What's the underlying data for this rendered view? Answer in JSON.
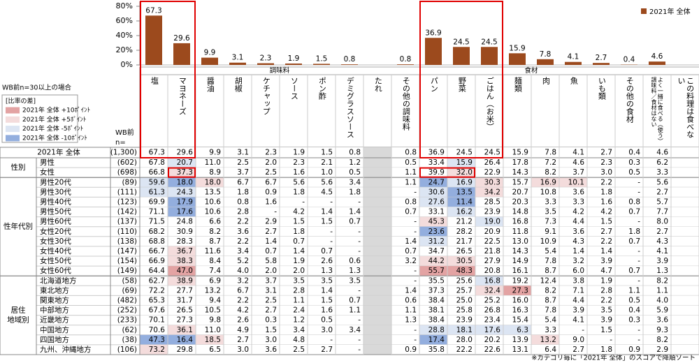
{
  "chart_data": {
    "type": "bar",
    "categories": [
      "塩",
      "マヨネーズ",
      "醤油",
      "胡椒",
      "ケチャップ",
      "ソース",
      "ポン酢",
      "デミグラスソース",
      "たれ",
      "その他の調味料",
      "パン",
      "野菜",
      "ごはん（お米）",
      "麺類",
      "肉",
      "魚",
      "いも類",
      "その他の食材",
      "よく一緒に食べる（使う）調味料／食材はない",
      "この料理は食べない"
    ],
    "series": [
      {
        "name": "2021年 全体",
        "color": "#9c4a1d",
        "values": [
          67.3,
          29.6,
          9.9,
          3.1,
          2.3,
          1.9,
          1.5,
          0.8,
          null,
          0.8,
          36.9,
          24.5,
          24.5,
          15.9,
          7.8,
          4.1,
          2.7,
          0.4,
          4.6,
          null
        ]
      }
    ],
    "ylim": [
      0,
      80
    ],
    "yticks": [
      {
        "value": 0,
        "label": "0%"
      },
      {
        "value": 20,
        "label": "20%"
      },
      {
        "value": 40,
        "label": "40%"
      },
      {
        "value": 60,
        "label": "60%"
      },
      {
        "value": 80,
        "label": "80%"
      }
    ],
    "legend": "top-right"
  },
  "column_groups": [
    "調味料",
    "食材"
  ],
  "condition": "WB前n=30以上の場合",
  "diff_legend": {
    "title": "[比率の差]",
    "items": [
      {
        "label": "2021年 全体 +10ﾎﾟｲﾝﾄ",
        "color": "#e3a3a3"
      },
      {
        "label": "2021年 全体 +5ﾎﾟｲﾝﾄ",
        "color": "#f4dcdc"
      },
      {
        "label": "2021年 全体 -5ﾎﾟｲﾝﾄ",
        "color": "#dce5f3"
      },
      {
        "label": "2021年 全体 -10ﾎﾟｲﾝﾄ",
        "color": "#93aede"
      }
    ]
  },
  "n_header": [
    "WB前",
    "n="
  ],
  "table": {
    "total": {
      "label": "2021年 全体",
      "n": "(1,300)",
      "cells": [
        "67.3",
        "29.6",
        "9.9",
        "3.1",
        "2.3",
        "1.9",
        "1.5",
        "0.8",
        null,
        "0.8",
        "36.9",
        "24.5",
        "24.5",
        "15.9",
        "7.8",
        "4.1",
        "2.7",
        "0.4",
        "4.6",
        null
      ]
    },
    "groups": [
      {
        "label": [
          "性別"
        ],
        "rows": [
          {
            "label": "男性",
            "n": "(602)",
            "cells": [
              "67.8",
              "20.7",
              "11.0",
              "2.5",
              "2.0",
              "2.3",
              "2.1",
              "1.2",
              null,
              "0.5",
              "33.4",
              "15.9",
              "26.4",
              "17.8",
              "7.2",
              "4.6",
              "2.3",
              "0.3",
              "6.2",
              null
            ]
          },
          {
            "label": "女性",
            "n": "(698)",
            "cells": [
              "66.8",
              "37.3",
              "8.9",
              "3.7",
              "2.5",
              "1.6",
              "1.0",
              "0.5",
              null,
              "1.1",
              "39.9",
              "32.0",
              "22.9",
              "14.3",
              "8.2",
              "3.7",
              "3.0",
              "0.5",
              "3.3",
              null
            ]
          }
        ]
      },
      {
        "label": [
          "性年代別"
        ],
        "rows": [
          {
            "label": "男性20代",
            "n": "(89)",
            "cells": [
              "59.6",
              "18.0",
              "18.0",
              "6.7",
              "6.7",
              "5.6",
              "5.6",
              "3.4",
              null,
              "1.1",
              "24.7",
              "16.9",
              "30.3",
              "15.7",
              "16.9",
              "10.1",
              "2.2",
              "-",
              "5.6",
              null
            ]
          },
          {
            "label": "男性30代",
            "n": "(111)",
            "cells": [
              "61.3",
              "24.3",
              "13.5",
              "1.8",
              "0.9",
              "1.8",
              "4.5",
              "1.8",
              null,
              "-",
              "30.6",
              "13.5",
              "34.2",
              "20.7",
              "10.8",
              "3.6",
              "1.8",
              "-",
              "2.7",
              null
            ]
          },
          {
            "label": "男性40代",
            "n": "(123)",
            "cells": [
              "69.9",
              "17.9",
              "10.6",
              "0.8",
              "1.6",
              "-",
              "-",
              "-",
              null,
              "0.8",
              "27.6",
              "11.4",
              "28.5",
              "20.3",
              "3.3",
              "3.3",
              "1.6",
              "0.8",
              "5.7",
              null
            ]
          },
          {
            "label": "男性50代",
            "n": "(142)",
            "cells": [
              "71.1",
              "17.6",
              "10.6",
              "2.8",
              "-",
              "4.2",
              "1.4",
              "1.4",
              null,
              "0.7",
              "33.1",
              "16.2",
              "23.9",
              "14.8",
              "3.5",
              "4.2",
              "4.2",
              "0.7",
              "7.7",
              null
            ]
          },
          {
            "label": "男性60代",
            "n": "(137)",
            "cells": [
              "71.5",
              "24.8",
              "6.6",
              "2.2",
              "2.9",
              "1.5",
              "1.5",
              "0.7",
              null,
              "-",
              "45.3",
              "21.2",
              "19.0",
              "16.8",
              "7.3",
              "4.4",
              "1.5",
              "-",
              "8.0",
              null
            ]
          },
          {
            "label": "女性20代",
            "n": "(110)",
            "cells": [
              "68.2",
              "30.9",
              "8.2",
              "3.6",
              "2.7",
              "1.8",
              "-",
              "-",
              null,
              "-",
              "23.6",
              "28.2",
              "20.9",
              "11.8",
              "9.1",
              "3.6",
              "2.7",
              "1.8",
              "2.7",
              null
            ]
          },
          {
            "label": "女性30代",
            "n": "(138)",
            "cells": [
              "68.8",
              "28.3",
              "8.7",
              "2.2",
              "1.4",
              "0.7",
              "-",
              "-",
              null,
              "1.4",
              "31.2",
              "21.7",
              "22.5",
              "13.0",
              "10.9",
              "4.3",
              "2.2",
              "0.7",
              "4.3",
              null
            ]
          },
          {
            "label": "女性40代",
            "n": "(147)",
            "cells": [
              "66.7",
              "36.7",
              "11.6",
              "3.4",
              "0.7",
              "1.4",
              "0.7",
              "-",
              null,
              "0.7",
              "34.7",
              "26.5",
              "21.8",
              "14.3",
              "5.4",
              "1.4",
              "1.4",
              "-",
              "4.1",
              null
            ]
          },
          {
            "label": "女性50代",
            "n": "(154)",
            "cells": [
              "66.9",
              "38.3",
              "8.4",
              "5.2",
              "5.8",
              "1.9",
              "2.6",
              "0.6",
              null,
              "3.2",
              "44.2",
              "30.5",
              "27.9",
              "14.9",
              "7.8",
              "3.2",
              "3.9",
              "-",
              "3.9",
              null
            ]
          },
          {
            "label": "女性60代",
            "n": "(149)",
            "cells": [
              "64.4",
              "47.0",
              "7.4",
              "4.0",
              "2.0",
              "2.0",
              "1.3",
              "1.3",
              null,
              "-",
              "55.7",
              "48.3",
              "20.8",
              "16.1",
              "8.7",
              "6.0",
              "4.7",
              "0.7",
              "1.3",
              null
            ]
          }
        ]
      },
      {
        "label": [
          "居住",
          "地域別"
        ],
        "rows": [
          {
            "label": "北海道地方",
            "n": "(58)",
            "cells": [
              "62.7",
              "38.9",
              "6.9",
              "3.2",
              "3.7",
              "3.5",
              "3.5",
              "3.5",
              null,
              "-",
              "35.5",
              "25.6",
              "16.8",
              "19.2",
              "12.4",
              "3.8",
              "1.9",
              "-",
              "8.2",
              null
            ]
          },
          {
            "label": "東北地方",
            "n": "(69)",
            "cells": [
              "72.2",
              "27.7",
              "13.2",
              "6.7",
              "3.1",
              "2.8",
              "1.4",
              "-",
              null,
              "1.4",
              "37.3",
              "25.7",
              "32.4",
              "27.3",
              "8.2",
              "7.1",
              "2.8",
              "1.1",
              "1.1",
              null
            ]
          },
          {
            "label": "関東地方",
            "n": "(482)",
            "cells": [
              "65.3",
              "31.7",
              "9.4",
              "2.2",
              "2.5",
              "1.1",
              "1.5",
              "0.7",
              null,
              "0.6",
              "38.4",
              "25.0",
              "25.2",
              "16.0",
              "8.7",
              "4.4",
              "2.2",
              "0.5",
              "4.0",
              null
            ]
          },
          {
            "label": "中部地方",
            "n": "(252)",
            "cells": [
              "67.6",
              "26.5",
              "10.5",
              "4.2",
              "2.7",
              "2.4",
              "1.6",
              "1.1",
              null,
              "1.1",
              "38.1",
              "25.8",
              "26.8",
              "16.3",
              "7.8",
              "3.9",
              "3.5",
              "0.4",
              "5.9",
              null
            ]
          },
          {
            "label": "近畿地方",
            "n": "(233)",
            "cells": [
              "70.1",
              "27.3",
              "9.8",
              "2.6",
              "0.3",
              "1.2",
              "0.5",
              "-",
              null,
              "1.3",
              "38.4",
              "23.9",
              "23.4",
              "15.4",
              "5.4",
              "4.1",
              "3.9",
              "0.3",
              "3.6",
              null
            ]
          },
          {
            "label": "中国地方",
            "n": "(62)",
            "cells": [
              "70.6",
              "36.1",
              "11.0",
              "4.9",
              "1.5",
              "3.4",
              "3.0",
              "3.4",
              null,
              "-",
              "28.8",
              "18.1",
              "17.6",
              "6.3",
              "3.3",
              "-",
              "1.5",
              "-",
              "9.3",
              null
            ]
          },
          {
            "label": "四国地方",
            "n": "(38)",
            "cells": [
              "47.3",
              "16.4",
              "18.5",
              "2.7",
              "3.0",
              "4.8",
              "-",
              "-",
              null,
              "-",
              "17.4",
              "28.0",
              "20.2",
              "13.9",
              "13.2",
              "9.0",
              "-",
              "-",
              "8.2",
              null
            ]
          },
          {
            "label": "九州、沖縄地方",
            "n": "(106)",
            "cells": [
              "73.2",
              "29.8",
              "6.5",
              "3.0",
              "3.6",
              "2.5",
              "2.7",
              "-",
              null,
              "0.9",
              "35.8",
              "22.2",
              "22.6",
              "13.1",
              "6.4",
              "2.7",
              "1.8",
              "0.9",
              "2.9",
              null
            ]
          }
        ]
      }
    ]
  },
  "footer": "※カテゴリ毎に「2021年 全体」のスコアで降順ソート"
}
